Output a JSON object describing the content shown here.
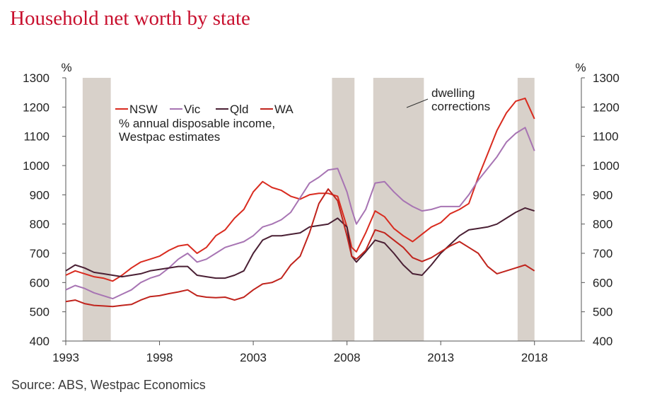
{
  "title": "Household net worth by state",
  "source": "Source: ABS, Westpac Economics",
  "colors": {
    "title": "#c8102e",
    "NSW": "#d92b1f",
    "Vic": "#a774b3",
    "Qld": "#4a2034",
    "WA": "#c0241d",
    "shade": "#d8d1ca",
    "axis": "#555555"
  },
  "chart_data": {
    "type": "line",
    "title": "Household net worth by state",
    "subtitle": "% annual disposable income, Westpac estimates",
    "xlabel": "",
    "ylabel_left": "%",
    "ylabel_right": "%",
    "xlim": [
      1993,
      2020.5
    ],
    "ylim": [
      400,
      1300
    ],
    "x_ticks": [
      1993,
      1998,
      2003,
      2008,
      2013,
      2018
    ],
    "y_ticks": [
      400,
      500,
      600,
      700,
      800,
      900,
      1000,
      1100,
      1200,
      1300
    ],
    "grid": false,
    "legend_position": "top-left",
    "annotation": {
      "text": [
        "dwelling",
        "corrections"
      ],
      "x": 2012.5,
      "y": 1220
    },
    "shaded_periods": [
      [
        1993.9,
        1995.4
      ],
      [
        2007.2,
        2008.4
      ],
      [
        2009.4,
        2012.1
      ],
      [
        2017.1,
        2018.0
      ]
    ],
    "series": [
      {
        "name": "NSW",
        "x": [
          1993,
          1993.5,
          1994,
          1994.5,
          1995,
          1995.5,
          1996,
          1996.5,
          1997,
          1997.5,
          1998,
          1998.5,
          1999,
          1999.5,
          2000,
          2000.5,
          2001,
          2001.5,
          2002,
          2002.5,
          2003,
          2003.5,
          2004,
          2004.5,
          2005,
          2005.5,
          2006,
          2006.5,
          2007,
          2007.5,
          2008,
          2008.25,
          2008.5,
          2009,
          2009.5,
          2010,
          2010.5,
          2011,
          2011.5,
          2012,
          2012.5,
          2013,
          2013.5,
          2014,
          2014.5,
          2015,
          2015.5,
          2016,
          2016.5,
          2017,
          2017.5,
          2018
        ],
        "y": [
          625,
          640,
          630,
          620,
          615,
          605,
          625,
          650,
          670,
          680,
          690,
          710,
          725,
          730,
          700,
          720,
          760,
          780,
          820,
          850,
          910,
          945,
          925,
          915,
          895,
          885,
          900,
          905,
          905,
          895,
          790,
          720,
          705,
          770,
          845,
          825,
          785,
          760,
          740,
          765,
          790,
          805,
          835,
          850,
          870,
          960,
          1040,
          1120,
          1180,
          1220,
          1230,
          1160
        ]
      },
      {
        "name": "Vic",
        "x": [
          1993,
          1993.5,
          1994,
          1994.5,
          1995,
          1995.5,
          1996,
          1996.5,
          1997,
          1997.5,
          1998,
          1998.5,
          1999,
          1999.5,
          2000,
          2000.5,
          2001,
          2001.5,
          2002,
          2002.5,
          2003,
          2003.5,
          2004,
          2004.5,
          2005,
          2005.5,
          2006,
          2006.5,
          2007,
          2007.5,
          2008,
          2008.25,
          2008.5,
          2009,
          2009.5,
          2010,
          2010.5,
          2011,
          2011.5,
          2012,
          2012.5,
          2013,
          2013.5,
          2014,
          2014.5,
          2015,
          2015.5,
          2016,
          2016.5,
          2017,
          2017.5,
          2018
        ],
        "y": [
          575,
          590,
          580,
          565,
          555,
          545,
          560,
          575,
          600,
          615,
          625,
          650,
          680,
          700,
          670,
          680,
          700,
          720,
          730,
          740,
          760,
          790,
          800,
          815,
          840,
          890,
          940,
          960,
          985,
          990,
          910,
          850,
          800,
          850,
          940,
          945,
          910,
          880,
          860,
          845,
          850,
          860,
          860,
          860,
          900,
          950,
          990,
          1030,
          1080,
          1110,
          1130,
          1050
        ]
      },
      {
        "name": "Qld",
        "x": [
          1993,
          1993.5,
          1994,
          1994.5,
          1995,
          1995.5,
          1996,
          1996.5,
          1997,
          1997.5,
          1998,
          1998.5,
          1999,
          1999.5,
          2000,
          2000.5,
          2001,
          2001.5,
          2002,
          2002.5,
          2003,
          2003.5,
          2004,
          2004.5,
          2005,
          2005.5,
          2006,
          2006.5,
          2007,
          2007.5,
          2008,
          2008.25,
          2008.5,
          2009,
          2009.5,
          2010,
          2010.5,
          2011,
          2011.5,
          2012,
          2012.5,
          2013,
          2013.5,
          2014,
          2014.5,
          2015,
          2015.5,
          2016,
          2016.5,
          2017,
          2017.5,
          2018
        ],
        "y": [
          640,
          660,
          650,
          635,
          630,
          625,
          620,
          625,
          630,
          640,
          645,
          650,
          655,
          655,
          625,
          620,
          615,
          615,
          625,
          640,
          700,
          745,
          760,
          760,
          765,
          770,
          790,
          795,
          800,
          820,
          790,
          690,
          670,
          705,
          745,
          735,
          700,
          660,
          630,
          625,
          660,
          700,
          730,
          760,
          780,
          785,
          790,
          800,
          820,
          840,
          855,
          845
        ]
      },
      {
        "name": "WA",
        "x": [
          1993,
          1993.5,
          1994,
          1994.5,
          1995,
          1995.5,
          1996,
          1996.5,
          1997,
          1997.5,
          1998,
          1998.5,
          1999,
          1999.5,
          2000,
          2000.5,
          2001,
          2001.5,
          2002,
          2002.5,
          2003,
          2003.5,
          2004,
          2004.5,
          2005,
          2005.5,
          2006,
          2006.5,
          2007,
          2007.5,
          2008,
          2008.25,
          2008.5,
          2009,
          2009.5,
          2010,
          2010.5,
          2011,
          2011.5,
          2012,
          2012.5,
          2013,
          2013.5,
          2014,
          2014.5,
          2015,
          2015.5,
          2016,
          2016.5,
          2017,
          2017.5,
          2018
        ],
        "y": [
          535,
          540,
          528,
          522,
          520,
          518,
          522,
          525,
          540,
          552,
          555,
          562,
          568,
          575,
          555,
          550,
          548,
          550,
          540,
          550,
          575,
          595,
          600,
          615,
          660,
          690,
          770,
          870,
          920,
          880,
          760,
          690,
          680,
          710,
          780,
          770,
          745,
          720,
          685,
          672,
          685,
          705,
          725,
          740,
          720,
          700,
          655,
          630,
          640,
          650,
          660,
          640
        ]
      }
    ]
  }
}
